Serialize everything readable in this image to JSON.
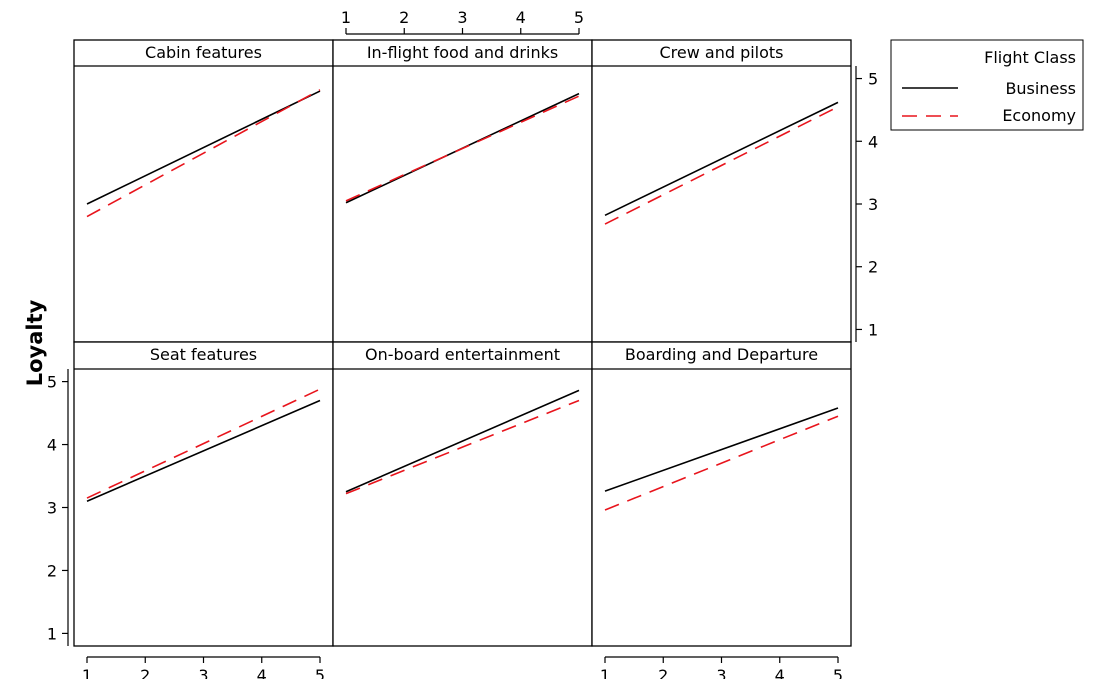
{
  "chart_data": {
    "type": "line",
    "ylabel": "Loyalty",
    "xlim": [
      1,
      5
    ],
    "ylim": [
      0.8,
      5.2
    ],
    "x_ticks": [
      1,
      2,
      3,
      4,
      5
    ],
    "y_ticks": [
      1,
      2,
      3,
      4,
      5
    ],
    "legend": {
      "title": "Flight Class",
      "placement": "top-right",
      "entries": [
        {
          "name": "Business",
          "color": "#000000",
          "style": "solid"
        },
        {
          "name": "Economy",
          "color": "#e8141c",
          "style": "dashed"
        }
      ]
    },
    "panels": [
      {
        "title": "Cabin features",
        "row": 0,
        "col": 0,
        "series": [
          {
            "name": "Business",
            "x": [
              1,
              5
            ],
            "y": [
              3.0,
              4.8
            ]
          },
          {
            "name": "Economy",
            "x": [
              1,
              5
            ],
            "y": [
              2.8,
              4.82
            ]
          }
        ]
      },
      {
        "title": "In-flight food and drinks",
        "row": 0,
        "col": 1,
        "series": [
          {
            "name": "Business",
            "x": [
              1,
              5
            ],
            "y": [
              3.02,
              4.76
            ]
          },
          {
            "name": "Economy",
            "x": [
              1,
              5
            ],
            "y": [
              3.05,
              4.72
            ]
          }
        ]
      },
      {
        "title": "Crew and pilots",
        "row": 0,
        "col": 2,
        "series": [
          {
            "name": "Business",
            "x": [
              1,
              5
            ],
            "y": [
              2.82,
              4.62
            ]
          },
          {
            "name": "Economy",
            "x": [
              1,
              5
            ],
            "y": [
              2.68,
              4.55
            ]
          }
        ]
      },
      {
        "title": "Seat features",
        "row": 1,
        "col": 0,
        "series": [
          {
            "name": "Business",
            "x": [
              1,
              5
            ],
            "y": [
              3.1,
              4.7
            ]
          },
          {
            "name": "Economy",
            "x": [
              1,
              5
            ],
            "y": [
              3.15,
              4.88
            ]
          }
        ]
      },
      {
        "title": "On-board entertainment",
        "row": 1,
        "col": 1,
        "series": [
          {
            "name": "Business",
            "x": [
              1,
              5
            ],
            "y": [
              3.25,
              4.86
            ]
          },
          {
            "name": "Economy",
            "x": [
              1,
              5
            ],
            "y": [
              3.22,
              4.7
            ]
          }
        ]
      },
      {
        "title": "Boarding and Departure",
        "row": 1,
        "col": 2,
        "series": [
          {
            "name": "Business",
            "x": [
              1,
              5
            ],
            "y": [
              3.26,
              4.58
            ]
          },
          {
            "name": "Economy",
            "x": [
              1,
              5
            ],
            "y": [
              2.96,
              4.45
            ]
          }
        ]
      }
    ]
  }
}
